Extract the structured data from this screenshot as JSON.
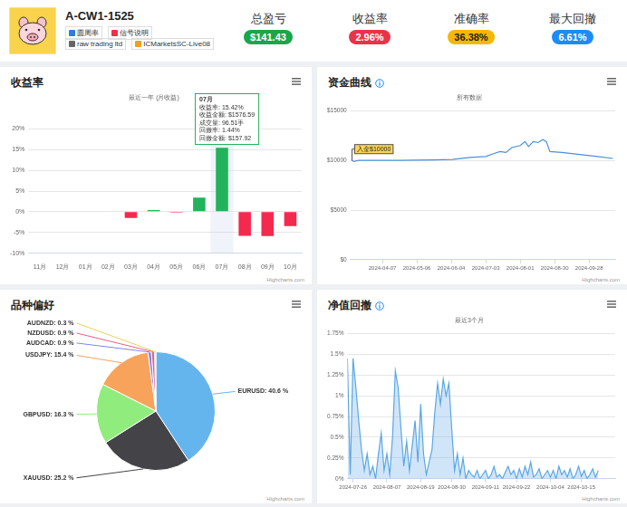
{
  "header": {
    "name": "A-CW1-1525",
    "badges": [
      "圆周率",
      "信号说明"
    ],
    "tags": [
      "raw trading ltd",
      "ICMarketsSC-Live08"
    ],
    "stats": [
      {
        "label": "总盈亏",
        "value": "$141.43",
        "color": "#1aa64a"
      },
      {
        "label": "收益率",
        "value": "2.96%",
        "color": "#ea3349"
      },
      {
        "label": "准确率",
        "value": "36.38%",
        "color": "#f5b800"
      },
      {
        "label": "最大回撤",
        "value": "6.61%",
        "color": "#1b8cf5"
      }
    ]
  },
  "chart_data": [
    {
      "type": "bar",
      "title": "收益率",
      "subtitle": "最近一年 (月收益)",
      "credits": "Highcharts.com",
      "categories": [
        "11月",
        "12月",
        "01月",
        "02月",
        "03月",
        "04月",
        "05月",
        "06月",
        "07月",
        "08月",
        "09月",
        "10月"
      ],
      "values": [
        null,
        null,
        null,
        null,
        -1.5,
        0.4,
        -0.2,
        3.4,
        15.42,
        -5.8,
        -5.9,
        -3.5
      ],
      "colors": [
        "#f5284e",
        "#f5284e",
        "#f5284e",
        "#f5284e",
        "#f5284e",
        "#21b35b",
        "#f5284e",
        "#21b35b",
        "#21b35b",
        "#f5284e",
        "#f5284e",
        "#f5284e"
      ],
      "ylim": [
        -10,
        20
      ],
      "yticks": [
        {
          "value": -10,
          "label": "-10%"
        },
        {
          "value": -5,
          "label": "-5%"
        },
        {
          "value": 0,
          "label": "0%"
        },
        {
          "value": 5,
          "label": "5%"
        },
        {
          "value": 10,
          "label": "10%"
        },
        {
          "value": 15,
          "label": "15%"
        },
        {
          "value": 20,
          "label": "20%"
        }
      ],
      "grid": true,
      "annotation": {
        "title": "07月",
        "lines": [
          "收益率: 15.42%",
          "收益金额: $1576.59",
          "成交量: 96.51手",
          "回撤率: 1.44%",
          "回撤金额: $157.92"
        ]
      }
    },
    {
      "type": "line",
      "title": "资金曲线",
      "subtitle": "所有数据",
      "credits": "Highcharts.com",
      "x": [
        "2024-03-12",
        "2024-03-14",
        "2024-03-18",
        "2024-04-20",
        "2024-05-20",
        "2024-06-05",
        "2024-06-20",
        "2024-07-03",
        "2024-07-10",
        "2024-07-15",
        "2024-07-20",
        "2024-07-25",
        "2024-08-01",
        "2024-08-05",
        "2024-08-08",
        "2024-08-12",
        "2024-08-16",
        "2024-08-20",
        "2024-08-23",
        "2024-08-26",
        "2024-09-05",
        "2024-09-20",
        "2024-10-05",
        "2024-10-18"
      ],
      "values": [
        10000,
        9900,
        10000,
        10000,
        10050,
        10100,
        10300,
        10400,
        10700,
        10900,
        10800,
        11300,
        11500,
        11900,
        11400,
        11900,
        11800,
        12100,
        11900,
        10900,
        10800,
        10600,
        10400,
        10200
      ],
      "color": "#4a8fdc",
      "xlim": [
        "2024-03-11",
        "2024-10-20"
      ],
      "xticks": [
        "2024-04-07",
        "2024-05-06",
        "2024-06-04",
        "2024-07-03",
        "2024-08-01",
        "2024-08-30",
        "2024-09-28"
      ],
      "ylim": [
        0,
        15000
      ],
      "yticks": [
        {
          "value": 0,
          "label": "$0"
        },
        {
          "value": 5000,
          "label": "$5000"
        },
        {
          "value": 10000,
          "label": "$10000"
        },
        {
          "value": 15000,
          "label": "$15000"
        }
      ],
      "grid": true,
      "annotation": {
        "x": "2024-03-12",
        "y": 10000,
        "text": "入金$10000"
      }
    },
    {
      "type": "pie",
      "title": "品种偏好",
      "credits": "Highcharts.com",
      "categories": [
        "EURUSD",
        "XAUUSD",
        "GBPUSD",
        "USDJPY",
        "AUDCAD",
        "NZDUSD",
        "AUDNZD"
      ],
      "values": [
        40.6,
        25.2,
        16.3,
        15.4,
        0.9,
        0.9,
        0.3
      ],
      "value_labels": [
        "EURUSD: 40.6 %",
        "XAUUSD: 25.2 %",
        "GBPUSD: 16.3 %",
        "USDJPY: 15.4 %",
        "AUDCAD: 0.9 %",
        "NZDUSD: 0.9 %",
        "AUDNZD: 0.3 %"
      ],
      "colors": [
        "#64b5ee",
        "#434348",
        "#90ed7d",
        "#f7a35c",
        "#8085e9",
        "#f15c80",
        "#e4d354"
      ],
      "data_labels": true
    },
    {
      "type": "area",
      "title": "净值回撤",
      "subtitle": "最近3个月",
      "credits": "Highcharts.com",
      "x": [
        "2024-07-24",
        "2024-07-25",
        "2024-07-26",
        "2024-07-27",
        "2024-07-28",
        "2024-07-29",
        "2024-07-30",
        "2024-07-31",
        "2024-08-01",
        "2024-08-02",
        "2024-08-03",
        "2024-08-04",
        "2024-08-05",
        "2024-08-06",
        "2024-08-07",
        "2024-08-08",
        "2024-08-09",
        "2024-08-10",
        "2024-08-11",
        "2024-08-12",
        "2024-08-13",
        "2024-08-14",
        "2024-08-15",
        "2024-08-16",
        "2024-08-17",
        "2024-08-18",
        "2024-08-19",
        "2024-08-20",
        "2024-08-21",
        "2024-08-22",
        "2024-08-23",
        "2024-08-24",
        "2024-08-25",
        "2024-08-26",
        "2024-08-27",
        "2024-08-28",
        "2024-08-29",
        "2024-08-30",
        "2024-08-31",
        "2024-09-01",
        "2024-09-02",
        "2024-09-03",
        "2024-09-04",
        "2024-09-05",
        "2024-09-06",
        "2024-09-07",
        "2024-09-08",
        "2024-09-09",
        "2024-09-10",
        "2024-09-11",
        "2024-09-12",
        "2024-09-13",
        "2024-09-14",
        "2024-09-15",
        "2024-09-16",
        "2024-09-17",
        "2024-09-18",
        "2024-09-19",
        "2024-09-20",
        "2024-09-21",
        "2024-09-22",
        "2024-09-23",
        "2024-09-24",
        "2024-09-25",
        "2024-09-26",
        "2024-09-27",
        "2024-09-28",
        "2024-09-29",
        "2024-09-30",
        "2024-10-01",
        "2024-10-02",
        "2024-10-03",
        "2024-10-04",
        "2024-10-05",
        "2024-10-06",
        "2024-10-07",
        "2024-10-08",
        "2024-10-09",
        "2024-10-10",
        "2024-10-11",
        "2024-10-12",
        "2024-10-13",
        "2024-10-14",
        "2024-10-15",
        "2024-10-16",
        "2024-10-17",
        "2024-10-18",
        "2024-10-19",
        "2024-10-20",
        "2024-10-21"
      ],
      "values": [
        1.45,
        0.05,
        1.45,
        1.1,
        0.7,
        0.35,
        0.1,
        0.3,
        0.05,
        0.15,
        0.0,
        0.3,
        0.55,
        0.1,
        0.3,
        0.05,
        0.5,
        1.3,
        1.1,
        0.6,
        0.15,
        0.45,
        0.1,
        0.4,
        0.7,
        0.2,
        0.9,
        0.3,
        0.05,
        0.2,
        0.35,
        0.8,
        1.15,
        0.9,
        1.2,
        1.0,
        1.15,
        0.6,
        0.1,
        0.3,
        0.05,
        0.25,
        0.0,
        0.1,
        0.05,
        0.02,
        0.1,
        0.0,
        0.05,
        0.1,
        0.0,
        0.05,
        0.15,
        0.02,
        0.05,
        0.0,
        0.08,
        0.15,
        0.05,
        0.1,
        0.0,
        0.12,
        0.02,
        0.15,
        0.05,
        0.2,
        0.02,
        0.05,
        0.12,
        0.0,
        0.05,
        0.1,
        0.02,
        0.1,
        0.0,
        0.15,
        0.05,
        0.1,
        0.02,
        0.12,
        0.0,
        0.05,
        0.15,
        0.03,
        0.1,
        0.0,
        0.05,
        0.12,
        0.02,
        0.1
      ],
      "color": "#5aa7e6",
      "xlim": [
        "2024-07-24",
        "2024-10-27"
      ],
      "xticks": [
        "2024-07-26",
        "2024-08-07",
        "2024-08-19",
        "2024-08-30",
        "2024-09-11",
        "2024-09-22",
        "2024-10-04",
        "2024-10-15"
      ],
      "ylim": [
        0,
        1.75
      ],
      "yticks": [
        {
          "value": 0,
          "label": "0%"
        },
        {
          "value": 0.25,
          "label": "0.25%"
        },
        {
          "value": 0.5,
          "label": "0.5%"
        },
        {
          "value": 0.75,
          "label": "0.75%"
        },
        {
          "value": 1,
          "label": "1%"
        },
        {
          "value": 1.25,
          "label": "1.25%"
        },
        {
          "value": 1.5,
          "label": "1.5%"
        },
        {
          "value": 1.75,
          "label": "1.75%"
        }
      ],
      "grid": true
    }
  ]
}
